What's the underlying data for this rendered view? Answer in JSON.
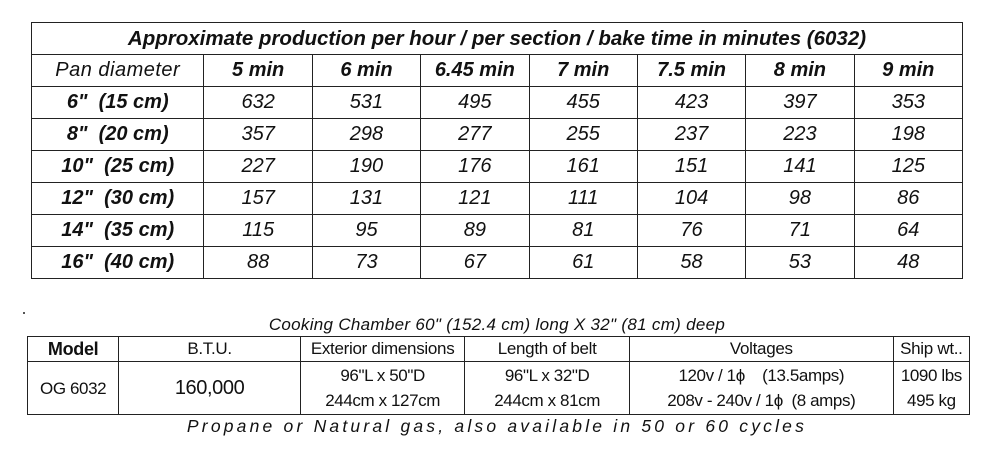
{
  "production": {
    "title": "Approximate production per hour / per section / bake time in minutes (6032)",
    "header_label": "Pan diameter",
    "columns": [
      "5 min",
      "6 min",
      "6.45 min",
      "7 min",
      "7.5 min",
      "8 min",
      "9 min"
    ],
    "rows": [
      {
        "pan": "6\"  (15 cm)",
        "values": [
          "632",
          "531",
          "495",
          "455",
          "423",
          "397",
          "353"
        ]
      },
      {
        "pan": "8\"  (20 cm)",
        "values": [
          "357",
          "298",
          "277",
          "255",
          "237",
          "223",
          "198"
        ]
      },
      {
        "pan": "10\"  (25 cm)",
        "values": [
          "227",
          "190",
          "176",
          "161",
          "151",
          "141",
          "125"
        ]
      },
      {
        "pan": "12\"  (30 cm)",
        "values": [
          "157",
          "131",
          "121",
          "111",
          "104",
          "98",
          "86"
        ]
      },
      {
        "pan": "14\"  (35 cm)",
        "values": [
          "115",
          "95",
          "89",
          "81",
          "76",
          "71",
          "64"
        ]
      },
      {
        "pan": "16\"  (40 cm)",
        "values": [
          "88",
          "73",
          "67",
          "61",
          "58",
          "53",
          "48"
        ]
      }
    ]
  },
  "chamber_caption": "Cooking Chamber 60\" (152.4 cm) long X 32\" (81 cm) deep",
  "spec": {
    "headers": {
      "model": "Model",
      "btu": "B.T.U.",
      "exterior": "Exterior dimensions",
      "belt": "Length of belt",
      "voltages": "Voltages",
      "ship": "Ship wt.."
    },
    "row": {
      "model": "OG 6032",
      "btu": "160,000",
      "exterior_1": "96\"L x 50\"D",
      "exterior_2": "244cm x 127cm",
      "belt_1": "96\"L x 32\"D",
      "belt_2": "244cm x 81cm",
      "voltage_1": "120v / 1ϕ    (13.5amps)",
      "voltage_2": "208v - 240v / 1ϕ  (8 amps)",
      "ship_1": "1090 lbs",
      "ship_2": "495 kg"
    }
  },
  "footer": "Propane or Natural gas, also available in 50 or 60 cycles"
}
